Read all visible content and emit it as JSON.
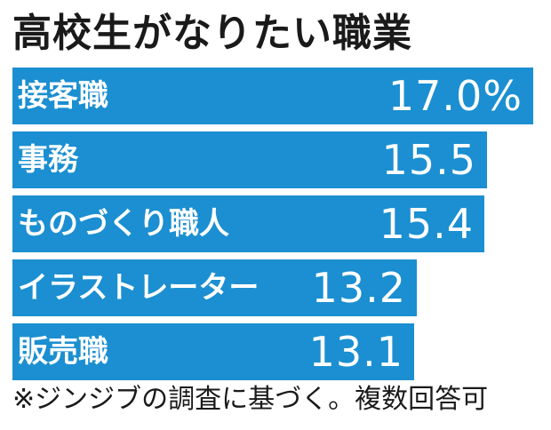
{
  "chart_data": {
    "type": "bar",
    "orientation": "horizontal",
    "title": "高校生がなりたい職業",
    "categories": [
      "接客職",
      "事務",
      "ものづくり職人",
      "イラストレーター",
      "販売職"
    ],
    "values": [
      17.0,
      15.5,
      15.4,
      13.2,
      13.1
    ],
    "value_labels": [
      "17.0%",
      "15.5",
      "15.4",
      "13.2",
      "13.1"
    ],
    "note": "※ジンジブの調査に基づく。複数回答可",
    "colors": {
      "bar": "#1b8fd1",
      "label": "#ffffff"
    },
    "xlim": [
      0,
      17.0
    ],
    "grid": false
  }
}
